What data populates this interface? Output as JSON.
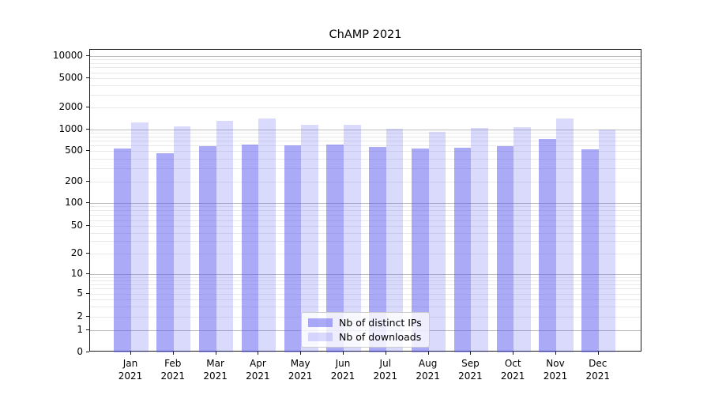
{
  "title": "ChAMP 2021",
  "chart_data": {
    "type": "bar",
    "title": "ChAMP 2021",
    "categories": [
      "Jan 2021",
      "Feb 2021",
      "Mar 2021",
      "Apr 2021",
      "May 2021",
      "Jun 2021",
      "Jul 2021",
      "Aug 2021",
      "Sep 2021",
      "Oct 2021",
      "Nov 2021",
      "Dec 2021"
    ],
    "series": [
      {
        "name": "Nb of distinct IPs",
        "values": [
          550,
          470,
          590,
          620,
          600,
          615,
          570,
          540,
          555,
          590,
          740,
          525
        ]
      },
      {
        "name": "Nb of downloads",
        "values": [
          1270,
          1110,
          1320,
          1410,
          1180,
          1160,
          1020,
          940,
          1065,
          1080,
          1410,
          1010
        ]
      }
    ],
    "colors": [
      "rgba(88,85,240,0.5)",
      "rgba(88,85,240,0.22)"
    ],
    "xlabel": "",
    "ylabel": "",
    "yscale": "symlog",
    "yticks": [
      0,
      1,
      2,
      5,
      10,
      20,
      50,
      100,
      200,
      500,
      1000,
      2000,
      5000,
      10000
    ],
    "ylim": [
      0,
      13000
    ],
    "grid": true,
    "legend_position": "lower center"
  }
}
